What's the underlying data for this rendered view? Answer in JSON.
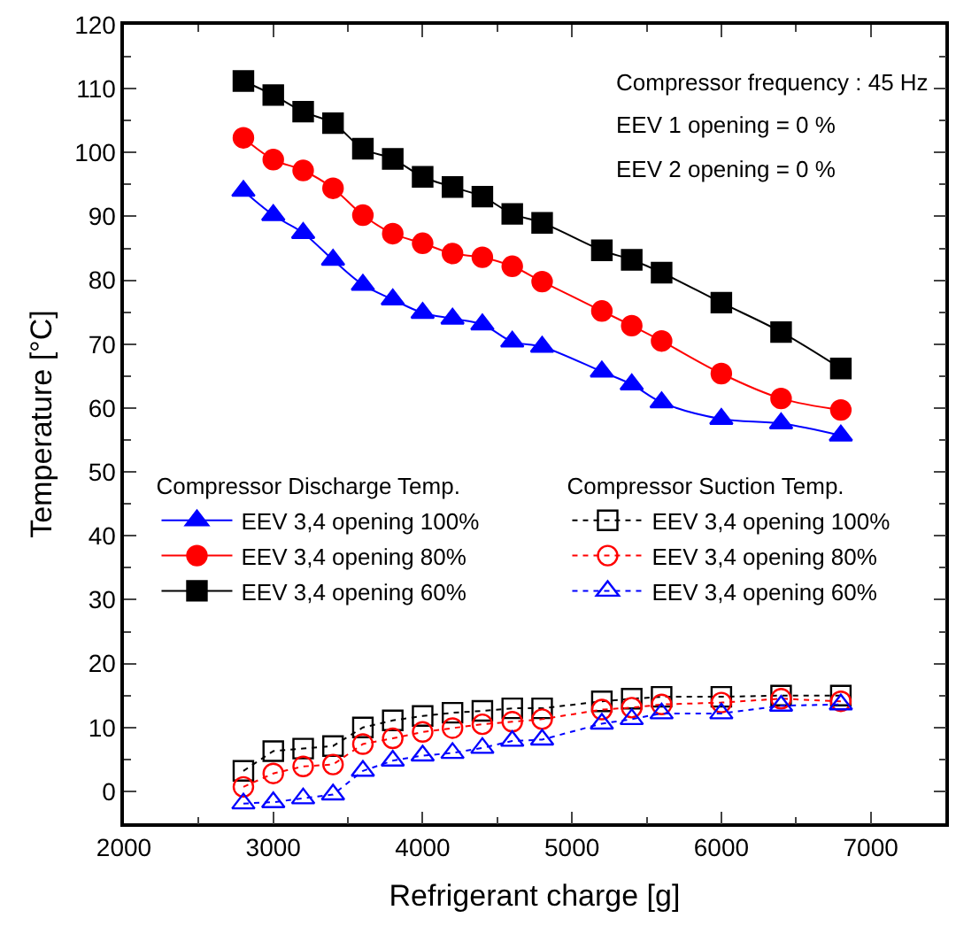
{
  "chart_data": {
    "type": "line",
    "xlabel": "Refrigerant charge [g]",
    "ylabel": "Temperature [°C]",
    "x": [
      2800,
      3000,
      3200,
      3400,
      3600,
      3800,
      4000,
      4200,
      4400,
      4600,
      4800,
      5200,
      5400,
      5600,
      6000,
      6400,
      6800
    ],
    "xlim": [
      2000,
      7500
    ],
    "ylim": [
      -5,
      120
    ],
    "xticks": [
      2000,
      {
        "value": 2500,
        "label": null
      },
      3000,
      {
        "value": 3500,
        "label": null
      },
      4000,
      {
        "value": 4500,
        "label": null
      },
      5000,
      {
        "value": 5500,
        "label": null
      },
      6000,
      {
        "value": 6500,
        "label": null
      },
      7000,
      {
        "value": 7500,
        "label": null
      }
    ],
    "yticks": [
      {
        "value": -5,
        "label": null
      },
      0,
      {
        "value": 5,
        "label": null
      },
      10,
      {
        "value": 15,
        "label": null
      },
      20,
      {
        "value": 25,
        "label": null
      },
      30,
      {
        "value": 35,
        "label": null
      },
      40,
      {
        "value": 45,
        "label": null
      },
      50,
      {
        "value": 55,
        "label": null
      },
      60,
      {
        "value": 65,
        "label": null
      },
      70,
      {
        "value": 75,
        "label": null
      },
      80,
      {
        "value": 85,
        "label": null
      },
      90,
      {
        "value": 95,
        "label": null
      },
      100,
      {
        "value": 105,
        "label": null
      },
      110,
      {
        "value": 115,
        "label": null
      },
      120
    ],
    "legend": "center left",
    "legend_title": [
      "Compressor Discharge Temp.",
      "Compressor Suction Temp."
    ],
    "annotations": [
      "Compressor frequency : 45 Hz",
      "EEV 1 opening = 0 %",
      "EEV 2 opening = 0 %"
    ],
    "series": [
      {
        "name": "EEV 3,4 opening 100%",
        "color": "#0000ff",
        "marker": "triangle",
        "line_style": "solid",
        "values": [
          94,
          90.2,
          87.4,
          83.2,
          79.3,
          77,
          74.9,
          74,
          73.1,
          70.4,
          69.6,
          65.7,
          63.7,
          60.9,
          58.3,
          57.6,
          55.7
        ]
      },
      {
        "name": "EEV 3,4 opening 80%",
        "color": "#ff0000",
        "marker": "circle",
        "line_style": "solid",
        "values": [
          102.3,
          98.9,
          97.2,
          94.4,
          90.2,
          87.3,
          85.8,
          84.2,
          83.6,
          82.2,
          79.8,
          75.2,
          72.9,
          70.5,
          65.4,
          61.5,
          59.7
        ]
      },
      {
        "name": "EEV 3,4 opening 60%",
        "color": "#000000",
        "marker": "square",
        "line_style": "solid",
        "values": [
          111.2,
          109,
          106.4,
          104.6,
          100.6,
          99,
          96.2,
          94.6,
          93.1,
          90.4,
          89,
          84.7,
          83.2,
          81.2,
          76.5,
          71.9,
          66.2
        ]
      },
      {
        "name": "EEV 3,4 opening 100%",
        "color": "#000000",
        "marker": "square-open",
        "line_style": "dotted",
        "values": [
          3.2,
          6.3,
          6.7,
          7.1,
          10,
          11.1,
          11.8,
          12.3,
          12.6,
          13,
          13,
          14.1,
          14.5,
          14.8,
          14.8,
          15,
          15
        ]
      },
      {
        "name": "EEV 3,4 opening 80%",
        "color": "#ff0000",
        "marker": "circle-open",
        "line_style": "dotted",
        "values": [
          0.7,
          2.8,
          3.9,
          4.2,
          7.4,
          8.3,
          9.3,
          9.9,
          10.5,
          10.9,
          11.3,
          12.8,
          13.1,
          13.6,
          13.9,
          14.5,
          14.1
        ]
      },
      {
        "name": "EEV 3,4 opening 60%",
        "color": "#0000ff",
        "marker": "triangle-open",
        "line_style": "dotted",
        "values": [
          -1.9,
          -1.7,
          -1.1,
          -0.5,
          3.2,
          4.8,
          5.6,
          6,
          6.8,
          7.9,
          8.1,
          10.6,
          11.3,
          12.2,
          12.2,
          13.4,
          13.6
        ]
      }
    ]
  }
}
